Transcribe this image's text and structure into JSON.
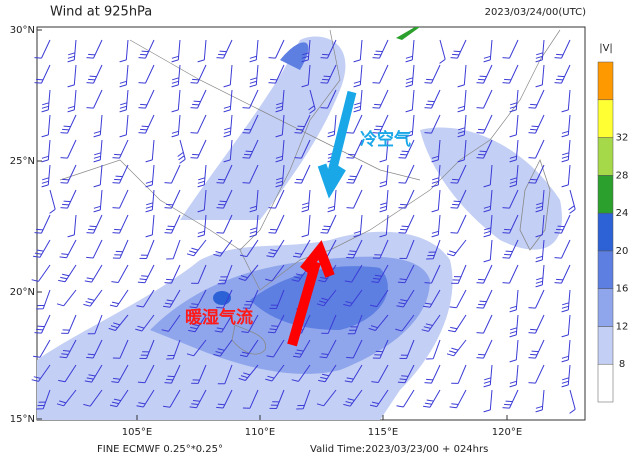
{
  "header": {
    "title": "Wind at 925hPa",
    "time": "2023/03/24/00(UTC)"
  },
  "map": {
    "lat_labels": [
      "15°N",
      "20°N",
      "25°N",
      "30°N"
    ],
    "lon_labels": [
      "105°E",
      "110°E",
      "115°E",
      "120°E"
    ],
    "annotations": [
      "冷空气",
      "暖湿气流"
    ]
  },
  "colorbar": {
    "label": "|V|",
    "ticks": [
      8,
      12,
      16,
      20,
      24,
      28,
      32
    ],
    "colors": [
      "#ffffff",
      "#c3cff4",
      "#90a6ec",
      "#5d7fe2",
      "#2d62d6",
      "#2ca02c",
      "#a6d94a",
      "#ffff33",
      "#ff9900"
    ]
  },
  "footer": {
    "model": "FINE ECMWF 0.25°*0.25°",
    "valid": "Valid Time:2023/03/23/00 + 024hrs"
  }
}
